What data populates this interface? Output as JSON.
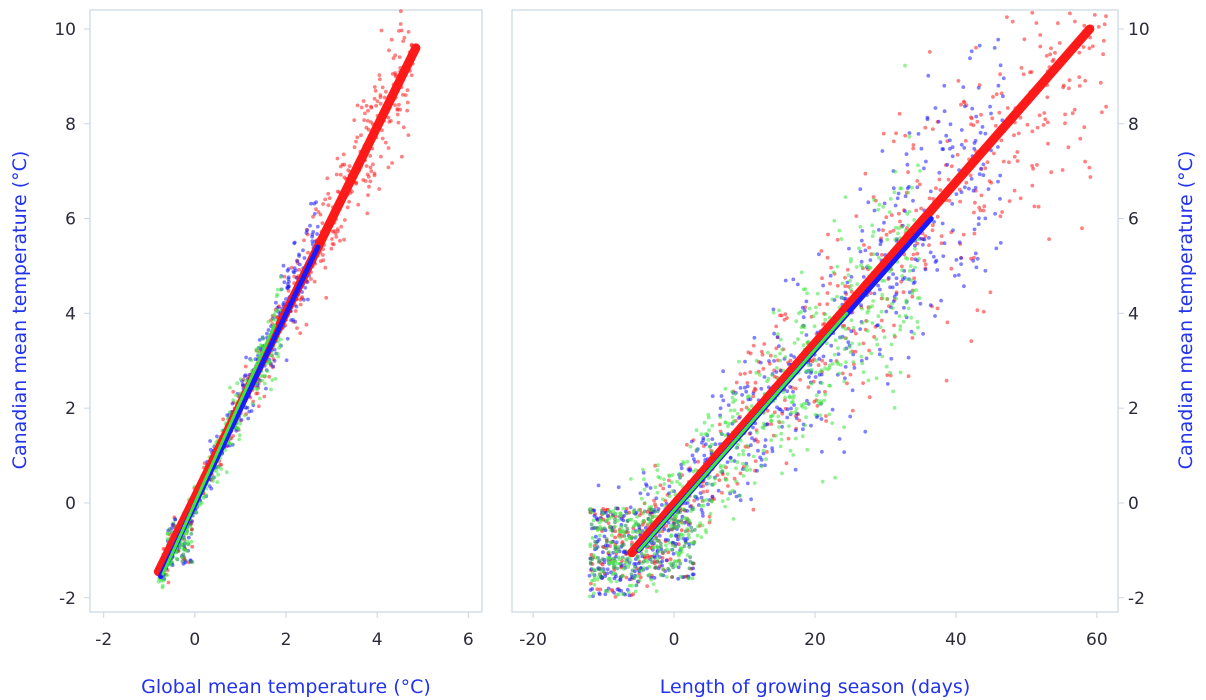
{
  "colors": {
    "red": "#ff1a1a",
    "blue": "#1a1aff",
    "green": "#3ee63e",
    "dark_green": "#2a8a5a",
    "axis_title": "#2233ee",
    "frame": "#c9d6e3"
  },
  "chart_data": [
    {
      "type": "scatter",
      "panel": "left",
      "title": "",
      "xlabel": "Global mean temperature (°C)",
      "ylabel": "Canadian mean temperature (°C)",
      "xlim": [
        -2.3,
        6.3
      ],
      "ylim": [
        -2.3,
        10.4
      ],
      "xticks": [
        "-2",
        "0",
        "2",
        "4",
        "6"
      ],
      "yticks": [
        "-2",
        "0",
        "2",
        "4",
        "6",
        "8",
        "10"
      ],
      "grid": false,
      "series": [
        {
          "color": "red",
          "scatter_range": [
            -0.7,
            4.8
          ],
          "slope": 2.0,
          "intercept": 0.0,
          "fit_line": [
            [
              -0.8,
              -1.45
            ],
            [
              4.85,
              9.6
            ]
          ]
        },
        {
          "color": "blue",
          "scatter_range": [
            -0.7,
            2.7
          ],
          "slope": 2.05,
          "intercept": 0.0,
          "fit_line": [
            [
              -0.75,
              -1.55
            ],
            [
              2.7,
              5.4
            ]
          ]
        },
        {
          "color": "green",
          "scatter_range": [
            -0.8,
            1.9
          ],
          "slope": 2.05,
          "intercept": 0.0,
          "fit_line": [
            [
              -0.7,
              -1.5
            ],
            [
              1.75,
              3.75
            ]
          ]
        }
      ]
    },
    {
      "type": "scatter",
      "panel": "right",
      "title": "",
      "xlabel": "Length of growing season (days)",
      "ylabel": "Canadian mean temperature (°C)",
      "xlim": [
        -23,
        63
      ],
      "ylim": [
        -2.3,
        10.4
      ],
      "xticks": [
        "-20",
        "0",
        "20",
        "40",
        "60"
      ],
      "yticks": [
        "-2",
        "0",
        "2",
        "4",
        "6",
        "8",
        "10"
      ],
      "grid": false,
      "series": [
        {
          "color": "red",
          "scatter_range": [
            -12,
            62
          ],
          "slope": 0.171,
          "intercept": -0.15,
          "fit_line": [
            [
              -6,
              -1.05
            ],
            [
              59,
              10.0
            ]
          ]
        },
        {
          "color": "blue",
          "scatter_range": [
            -12,
            47
          ],
          "slope": 0.168,
          "intercept": -0.1,
          "fit_line": [
            [
              -5,
              -1.0
            ],
            [
              36.5,
              6.0
            ]
          ]
        },
        {
          "color": "green",
          "scatter_range": [
            -12,
            35
          ],
          "slope": 0.163,
          "intercept": -0.1,
          "fit_line": [
            [
              -5,
              -1.0
            ],
            [
              24.5,
              4.0
            ]
          ]
        }
      ]
    }
  ]
}
